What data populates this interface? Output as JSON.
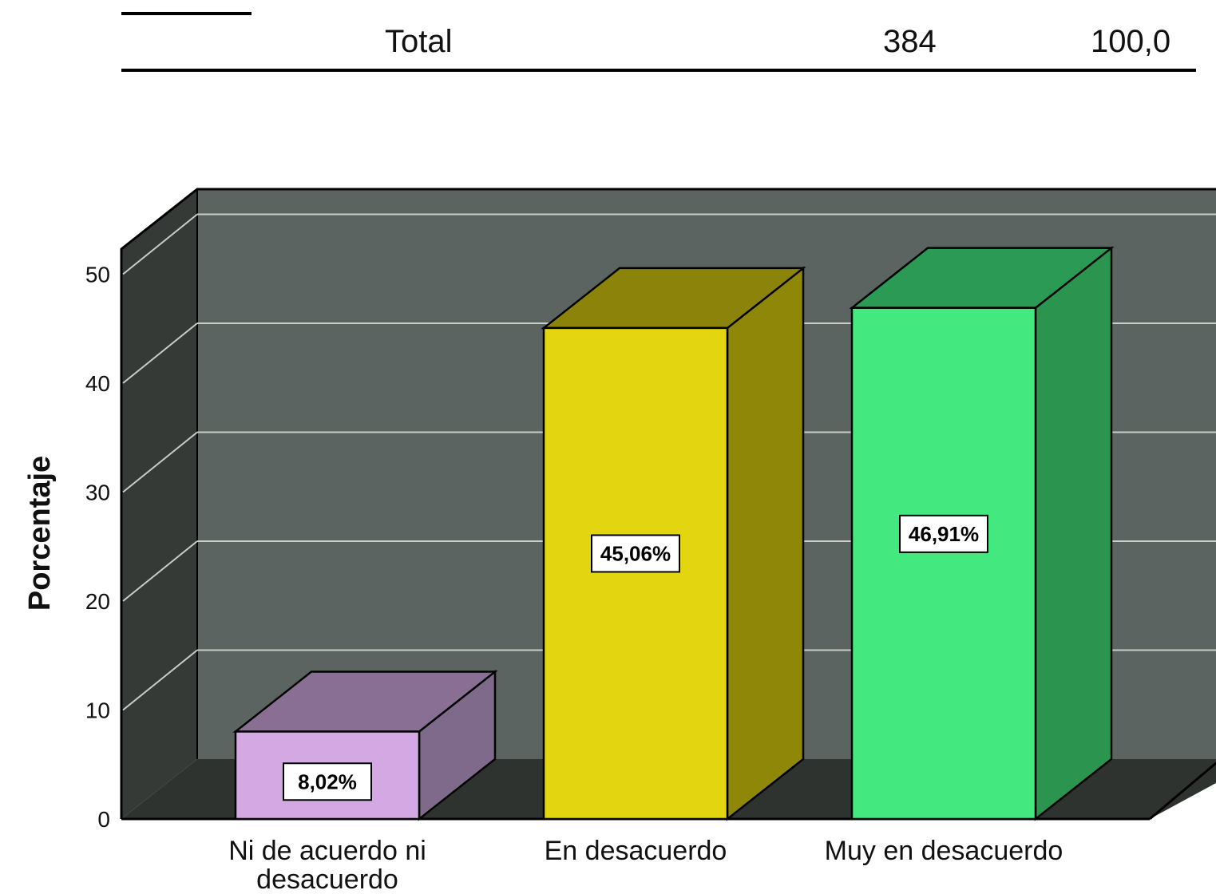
{
  "table": {
    "total_label": "Total",
    "total_count": "384",
    "total_percent": "100,0"
  },
  "chart_data": {
    "type": "bar",
    "title": "",
    "xlabel": "",
    "ylabel": "Porcentaje",
    "ylim": [
      0,
      50
    ],
    "yticks": [
      "0",
      "10",
      "20",
      "30",
      "40",
      "50"
    ],
    "grid": true,
    "three_d": true,
    "categories": [
      "Ni de acuerdo ni desacuerdo",
      "En desacuerdo",
      "Muy en desacuerdo"
    ],
    "category_lines": [
      [
        "Ni de acuerdo ni",
        "desacuerdo"
      ],
      [
        "En desacuerdo"
      ],
      [
        "Muy en desacuerdo"
      ]
    ],
    "values": [
      8.02,
      45.06,
      46.91
    ],
    "value_labels": [
      "8,02%",
      "45,06%",
      "46,91%"
    ],
    "colors": {
      "bars_front": [
        "#d4a9e3",
        "#e3d611",
        "#43e87f"
      ],
      "bars_top": [
        "#8a6f95",
        "#8c840a",
        "#2a9a54"
      ],
      "bars_side": [
        "#7f6a8b",
        "#8f8708",
        "#2b9550"
      ],
      "back_wall": "#5b6460",
      "side_wall": "#363a37",
      "floor": "#2f3330",
      "gridline": "#c9cec9"
    }
  }
}
